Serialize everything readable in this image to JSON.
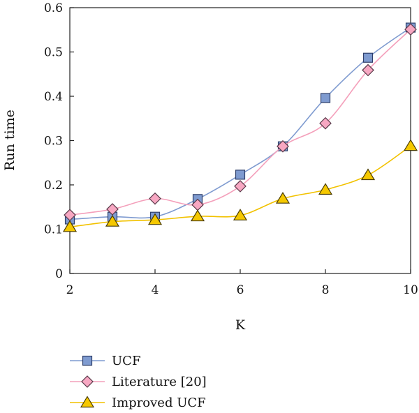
{
  "chart_data": {
    "type": "line",
    "title": "",
    "xlabel": "K",
    "ylabel": "Run time",
    "xlim": [
      2,
      10
    ],
    "ylim": [
      0,
      0.6
    ],
    "xticks": [
      2,
      4,
      6,
      8,
      10
    ],
    "yticks": [
      0,
      0.1,
      0.2,
      0.3,
      0.4,
      0.5,
      0.6
    ],
    "x": [
      2,
      3,
      4,
      5,
      6,
      7,
      8,
      9,
      10
    ],
    "grid": false,
    "legend_position": "bottom-left",
    "series": [
      {
        "name": "UCF",
        "values": [
          0.122,
          0.128,
          0.128,
          0.168,
          0.223,
          0.287,
          0.396,
          0.487,
          0.555
        ],
        "marker": "square",
        "line_color": "#7f9bd0",
        "marker_fill": "#7f9bd0",
        "marker_stroke": "#2f3f6a"
      },
      {
        "name": "Literature [20]",
        "values": [
          0.132,
          0.145,
          0.169,
          0.155,
          0.197,
          0.287,
          0.339,
          0.459,
          0.551
        ],
        "marker": "diamond",
        "line_color": "#f4a0bb",
        "marker_fill": "#f7a7c2",
        "marker_stroke": "#5a3a4a"
      },
      {
        "name": "Improved UCF",
        "values": [
          0.105,
          0.117,
          0.121,
          0.129,
          0.131,
          0.169,
          0.189,
          0.222,
          0.288
        ],
        "marker": "triangle",
        "line_color": "#f2c200",
        "marker_fill": "#f5c800",
        "marker_stroke": "#4a3c00"
      }
    ]
  }
}
